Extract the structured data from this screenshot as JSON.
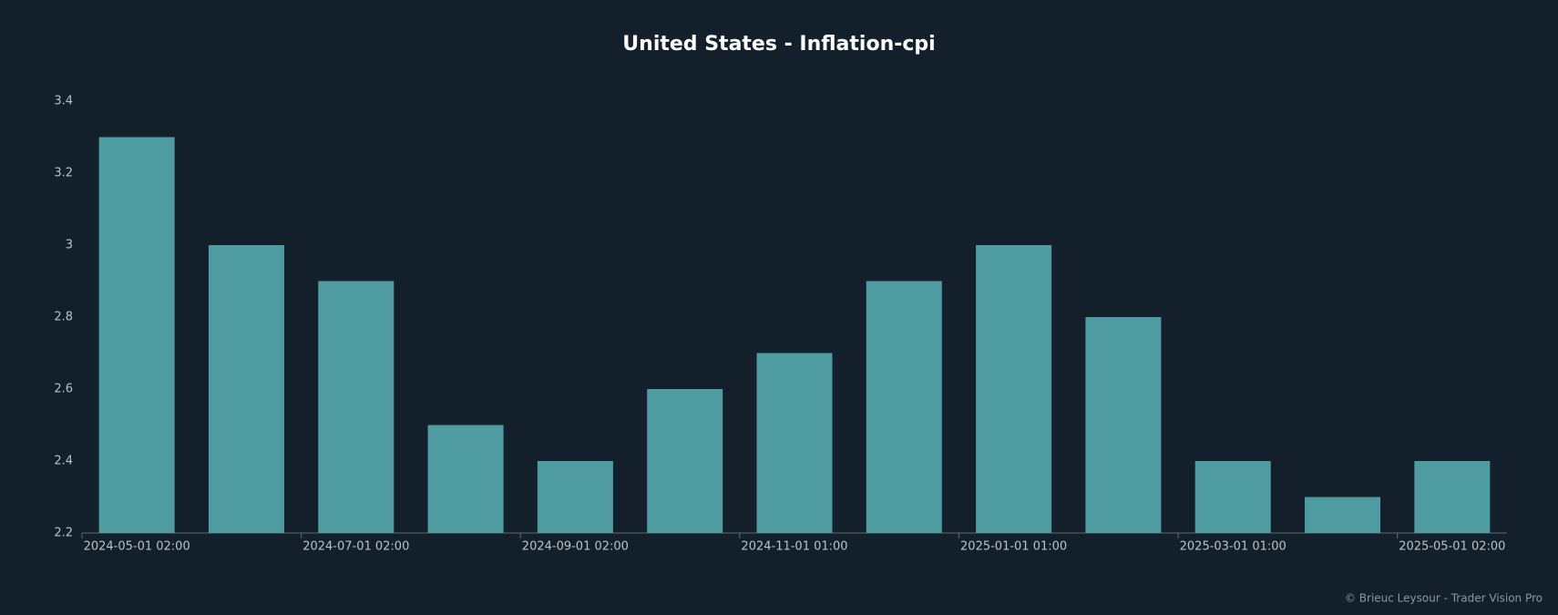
{
  "chart_data": {
    "type": "bar",
    "title": "United States - Inflation-cpi",
    "categories": [
      "2024-05-01 02:00",
      null,
      "2024-07-01 02:00",
      null,
      "2024-09-01 02:00",
      null,
      "2024-11-01 01:00",
      null,
      "2025-01-01 01:00",
      null,
      "2025-03-01 01:00",
      null,
      "2025-05-01 02:00"
    ],
    "values": [
      3.3,
      3.0,
      2.9,
      2.5,
      2.4,
      2.6,
      2.7,
      2.9,
      3.0,
      2.8,
      2.4,
      2.3,
      2.4
    ],
    "color": "#4e9ca2",
    "ylim": [
      2.2,
      3.4
    ],
    "yticks": [
      2.2,
      2.4,
      2.6,
      2.8,
      3,
      3.2,
      3.4
    ],
    "grid": false,
    "footer": "© Brieuc Leysour - Trader Vision Pro"
  }
}
